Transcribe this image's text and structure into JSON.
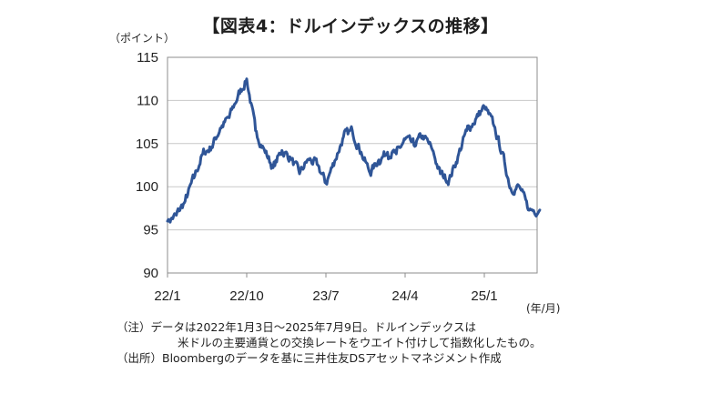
{
  "chart_data": {
    "type": "line",
    "title": "【図表4：ドルインデックスの推移】",
    "ylabel": "（ポイント）",
    "xlabel": "(年/月)",
    "ylim": [
      90,
      115
    ],
    "yticks": [
      90,
      95,
      100,
      105,
      110,
      115
    ],
    "x_range": [
      "2022-01",
      "2025-07"
    ],
    "xticks": [
      {
        "label": "22/1",
        "x": "2022-01"
      },
      {
        "label": "22/10",
        "x": "2022-10"
      },
      {
        "label": "23/7",
        "x": "2023-07"
      },
      {
        "label": "24/4",
        "x": "2024-04"
      },
      {
        "label": "25/1",
        "x": "2025-01"
      }
    ],
    "grid": "horizontal",
    "line_color": "#2f5597",
    "series": [
      {
        "x": [
          "2022-01",
          "2022-02",
          "2022-03",
          "2022-04",
          "2022-05",
          "2022-06",
          "2022-07",
          "2022-08",
          "2022-09",
          "2022-10",
          "2022-11",
          "2022-12",
          "2023-01",
          "2023-02",
          "2023-03",
          "2023-04",
          "2023-05",
          "2023-06",
          "2023-07",
          "2023-08",
          "2023-09",
          "2023-10",
          "2023-11",
          "2023-12",
          "2024-01",
          "2024-02",
          "2024-03",
          "2024-04",
          "2024-05",
          "2024-06",
          "2024-07",
          "2024-08",
          "2024-09",
          "2024-10",
          "2024-11",
          "2024-12",
          "2025-01",
          "2025-02",
          "2025-03",
          "2025-04",
          "2025-05",
          "2025-06",
          "2025-07"
        ],
        "values": [
          96.0,
          96.7,
          98.3,
          101.0,
          103.8,
          104.6,
          106.8,
          108.0,
          110.5,
          112.5,
          106.5,
          104.3,
          102.2,
          104.2,
          103.3,
          101.5,
          103.2,
          102.6,
          100.4,
          103.0,
          105.8,
          106.5,
          104.0,
          101.6,
          103.1,
          104.0,
          103.8,
          105.5,
          104.8,
          105.9,
          104.5,
          101.5,
          100.8,
          103.5,
          106.5,
          107.8,
          109.3,
          107.3,
          104.0,
          99.8,
          100.0,
          97.3,
          97.3
        ]
      }
    ]
  },
  "notes": {
    "note_line1": "（注）データは2022年1月3日～2025年7月9日。ドルインデックスは",
    "note_line2": "米ドルの主要通貨との交換レートをウエイト付けして指数化したもの。",
    "source_line": "（出所）Bloombergのデータを基に三井住友DSアセットマネジメント作成"
  }
}
